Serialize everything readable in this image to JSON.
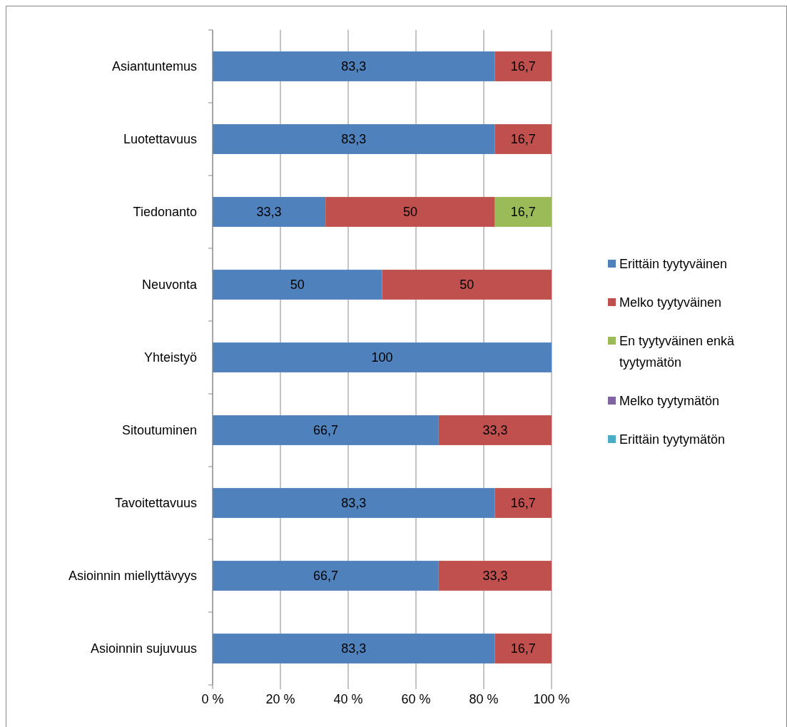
{
  "chart_data": {
    "type": "bar",
    "orientation": "horizontal",
    "stacked": true,
    "categories": [
      "Asiantuntemus",
      "Luotettavuus",
      "Tiedonanto",
      "Neuvonta",
      "Yhteistyö",
      "Sitoutuminen",
      "Tavoitettavuus",
      "Asioinnin miellyttävyys",
      "Asioinnin sujuvuus"
    ],
    "series": [
      {
        "name": "Erittäin tyytyväinen",
        "color": "#4f81bd",
        "values": [
          83.3,
          83.3,
          33.3,
          50,
          100,
          66.7,
          83.3,
          66.7,
          83.3
        ],
        "value_labels": [
          "83,3",
          "83,3",
          "33,3",
          "50",
          "100",
          "66,7",
          "83,3",
          "66,7",
          "83,3"
        ]
      },
      {
        "name": "Melko tyytyväinen",
        "color": "#c0504d",
        "values": [
          16.7,
          16.7,
          50,
          50,
          0,
          33.3,
          16.7,
          33.3,
          16.7
        ],
        "value_labels": [
          "16,7",
          "16,7",
          "50",
          "50",
          null,
          "33,3",
          "16,7",
          "33,3",
          "16,7"
        ]
      },
      {
        "name": "En tyytyväinen enkä tyytymätön",
        "color": "#9bbb59",
        "values": [
          0,
          0,
          16.7,
          0,
          0,
          0,
          0,
          0,
          0
        ],
        "value_labels": [
          null,
          null,
          "16,7",
          null,
          null,
          null,
          null,
          null,
          null
        ]
      },
      {
        "name": "Melko tyytymätön",
        "color": "#8064a2",
        "values": [
          0,
          0,
          0,
          0,
          0,
          0,
          0,
          0,
          0
        ],
        "value_labels": [
          null,
          null,
          null,
          null,
          null,
          null,
          null,
          null,
          null
        ]
      },
      {
        "name": "Erittäin tyytymätön",
        "color": "#4bacc6",
        "values": [
          0,
          0,
          0,
          0,
          0,
          0,
          0,
          0,
          0
        ],
        "value_labels": [
          null,
          null,
          null,
          null,
          null,
          null,
          null,
          null,
          null
        ]
      }
    ],
    "xlim": [
      0,
      100
    ],
    "xticks": [
      {
        "value": 0,
        "label": "0 %"
      },
      {
        "value": 20,
        "label": "20 %"
      },
      {
        "value": 40,
        "label": "40 %"
      },
      {
        "value": 60,
        "label": "60 %"
      },
      {
        "value": 80,
        "label": "80 %"
      },
      {
        "value": 100,
        "label": "100 %"
      }
    ],
    "grid": "x",
    "legend": "right"
  }
}
